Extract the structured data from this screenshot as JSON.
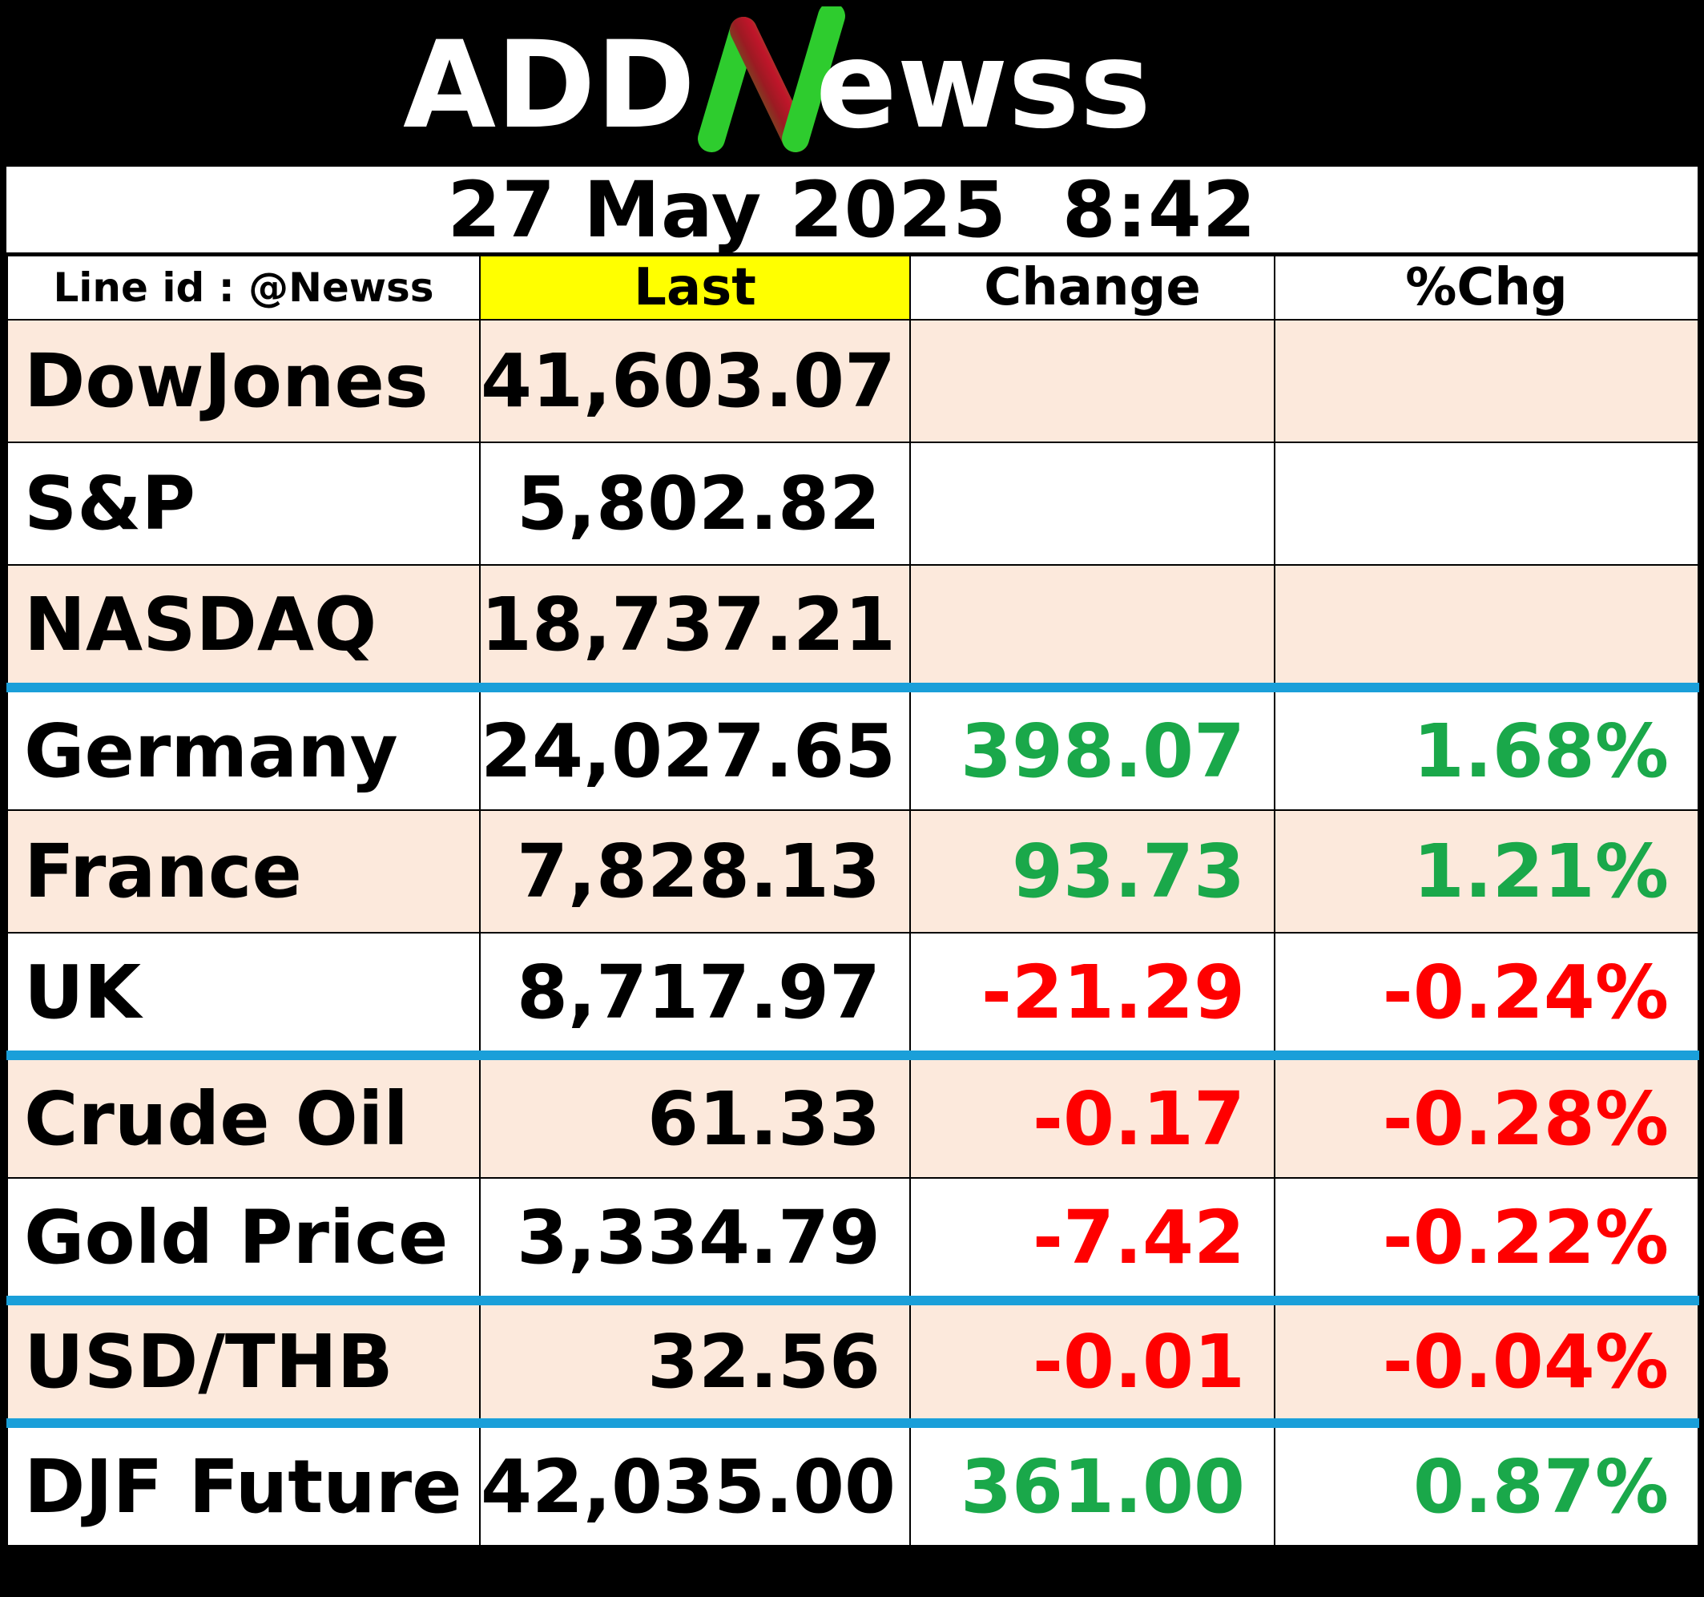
{
  "brand": {
    "logo_text_left": "ADD",
    "logo_text_n": "N",
    "logo_text_right": "ewss",
    "colors": {
      "background": "#000000",
      "text": "#ffffff",
      "n_green": "#2ecc2e",
      "n_red": "#c0152a"
    }
  },
  "timestamp": "27 May 2025  8:42",
  "table": {
    "headers": {
      "label": "Line id : @Newss",
      "last": "Last",
      "change": "Change",
      "pct": "%Chg"
    },
    "rows": [
      {
        "name": "DowJones",
        "last": "41,603.07",
        "change": "",
        "pct": "",
        "direction": "none"
      },
      {
        "name": "S&P",
        "last": "5,802.82",
        "change": "",
        "pct": "",
        "direction": "none"
      },
      {
        "name": "NASDAQ",
        "last": "18,737.21",
        "change": "",
        "pct": "",
        "direction": "none"
      },
      {
        "name": "Germany",
        "last": "24,027.65",
        "change": "398.07",
        "pct": "1.68%",
        "direction": "up"
      },
      {
        "name": "France",
        "last": "7,828.13",
        "change": "93.73",
        "pct": "1.21%",
        "direction": "up"
      },
      {
        "name": "UK",
        "last": "8,717.97",
        "change": "-21.29",
        "pct": "-0.24%",
        "direction": "down"
      },
      {
        "name": "Crude Oil",
        "last": "61.33",
        "change": "-0.17",
        "pct": "-0.28%",
        "direction": "down"
      },
      {
        "name": "Gold Price",
        "last": "3,334.79",
        "change": "-7.42",
        "pct": "-0.22%",
        "direction": "down"
      },
      {
        "name": "USD/THB",
        "last": "32.56",
        "change": "-0.01",
        "pct": "-0.04%",
        "direction": "down"
      },
      {
        "name": "DJF Future",
        "last": "42,035.00",
        "change": "361.00",
        "pct": "0.87%",
        "direction": "up"
      }
    ],
    "colors": {
      "up": "#1aa84a",
      "down": "#ff0000",
      "shaded_row": "#fce9dc",
      "last_header": "#ffff00",
      "group_separator": "#1a9fd9"
    }
  }
}
